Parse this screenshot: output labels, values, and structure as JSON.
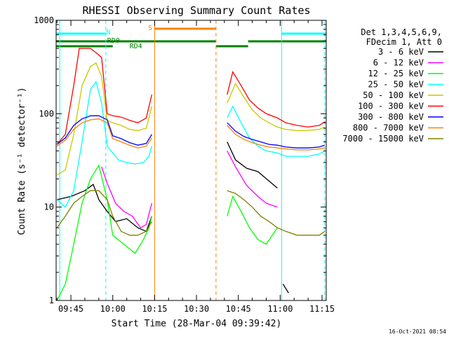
{
  "chart_data": {
    "type": "line",
    "title": "RHESSI Observing Summary Count Rates",
    "xlabel": "Start Time (28-Mar-04 09:39:42)",
    "ylabel": "Count Rate (s⁻¹ detector⁻¹)",
    "y_scale": "log",
    "ylim": [
      1,
      1000
    ],
    "xlim": [
      "09:39:42",
      "11:16:30"
    ],
    "y_ticks": [
      {
        "value": 1,
        "label": "1"
      },
      {
        "value": 10,
        "label": "10"
      },
      {
        "value": 100,
        "label": "100"
      },
      {
        "value": 1000,
        "label": "1000"
      }
    ],
    "x_ticks": [
      {
        "value": "09:45",
        "label": "09:45"
      },
      {
        "value": "10:00",
        "label": "10:00"
      },
      {
        "value": "10:15",
        "label": "10:15"
      },
      {
        "value": "10:30",
        "label": "10:30"
      },
      {
        "value": "10:45",
        "label": "10:45"
      },
      {
        "value": "11:00",
        "label": "11:00"
      },
      {
        "value": "11:15",
        "label": "11:15"
      }
    ],
    "legend": {
      "placement": "right",
      "header": [
        "Det 1,3,4,5,6,9,",
        "FDecim 1, Att 0"
      ]
    },
    "series": [
      {
        "name": "3 - 6 keV",
        "color": "#000000",
        "points": [
          [
            "09:40",
            12.0
          ],
          [
            "09:45",
            13.0
          ],
          [
            "09:50",
            15.0
          ],
          [
            "09:53",
            17.5
          ],
          [
            "09:55",
            12.0
          ],
          [
            "09:58",
            9.0
          ],
          [
            "10:01",
            7.0
          ],
          [
            "10:05",
            7.5
          ],
          [
            "10:09",
            6.0
          ],
          [
            "10:12",
            5.5
          ],
          [
            "10:14",
            8.0
          ],
          [
            "10:16",
            null
          ],
          [
            "10:41",
            50.0
          ],
          [
            "10:44",
            32.0
          ],
          [
            "10:48",
            26.0
          ],
          [
            "10:52",
            24.0
          ],
          [
            "10:56",
            19.0
          ],
          [
            "10:59",
            16.0
          ],
          [
            "11:00",
            null
          ],
          [
            "11:01",
            1.5
          ],
          [
            "11:03",
            1.2
          ]
        ]
      },
      {
        "name": "6 - 12 keV",
        "color": "#ff00ff",
        "points": [
          [
            "09:56",
            27.0
          ],
          [
            "09:58",
            18.0
          ],
          [
            "10:01",
            11.0
          ],
          [
            "10:04",
            9.0
          ],
          [
            "10:07",
            8.0
          ],
          [
            "10:10",
            6.0
          ],
          [
            "10:12",
            6.5
          ],
          [
            "10:14",
            11.0
          ],
          [
            "10:16",
            null
          ],
          [
            "10:41",
            40.0
          ],
          [
            "10:44",
            27.0
          ],
          [
            "10:48",
            17.0
          ],
          [
            "10:52",
            13.0
          ],
          [
            "10:55",
            11.0
          ],
          [
            "10:59",
            10.0
          ],
          [
            "11:00",
            null
          ]
        ]
      },
      {
        "name": "12 - 25 keV",
        "color": "#00ff00",
        "points": [
          [
            "09:40",
            1.0
          ],
          [
            "09:43",
            1.5
          ],
          [
            "09:46",
            4.0
          ],
          [
            "09:49",
            11.0
          ],
          [
            "09:52",
            20.0
          ],
          [
            "09:55",
            28.0
          ],
          [
            "09:58",
            12.0
          ],
          [
            "10:00",
            5.0
          ],
          [
            "10:04",
            4.0
          ],
          [
            "10:08",
            3.2
          ],
          [
            "10:11",
            4.5
          ],
          [
            "10:13",
            6.0
          ],
          [
            "10:14",
            8.0
          ],
          [
            "10:16",
            null
          ],
          [
            "10:41",
            8.0
          ],
          [
            "10:43",
            13.0
          ],
          [
            "10:46",
            9.0
          ],
          [
            "10:49",
            6.0
          ],
          [
            "10:52",
            4.5
          ],
          [
            "10:55",
            4.0
          ],
          [
            "10:59",
            6.0
          ],
          [
            "11:00",
            null
          ]
        ]
      },
      {
        "name": "25 - 50 keV",
        "color": "#00ffff",
        "points": [
          [
            "09:40",
            12.0
          ],
          [
            "09:43",
            10.0
          ],
          [
            "09:46",
            15.0
          ],
          [
            "09:49",
            50.0
          ],
          [
            "09:52",
            180.0
          ],
          [
            "09:54",
            220.0
          ],
          [
            "09:56",
            130.0
          ],
          [
            "09:58",
            45.0
          ],
          [
            "10:00",
            38.0
          ],
          [
            "10:02",
            32.0
          ],
          [
            "10:05",
            30.0
          ],
          [
            "10:08",
            29.0
          ],
          [
            "10:11",
            30.0
          ],
          [
            "10:13",
            35.0
          ],
          [
            "10:14",
            45.0
          ],
          [
            "10:16",
            null
          ],
          [
            "10:41",
            90.0
          ],
          [
            "10:43",
            120.0
          ],
          [
            "10:46",
            80.0
          ],
          [
            "10:49",
            55.0
          ],
          [
            "10:52",
            45.0
          ],
          [
            "10:55",
            40.0
          ],
          [
            "10:59",
            38.0
          ],
          [
            "11:02",
            35.0
          ],
          [
            "11:06",
            35.0
          ],
          [
            "11:10",
            35.0
          ],
          [
            "11:14",
            37.0
          ],
          [
            "11:16",
            40.0
          ]
        ]
      },
      {
        "name": "50 - 100 keV",
        "color": "#c8c800",
        "points": [
          [
            "09:40",
            22.0
          ],
          [
            "09:43",
            25.0
          ],
          [
            "09:46",
            60.0
          ],
          [
            "09:49",
            200.0
          ],
          [
            "09:52",
            320.0
          ],
          [
            "09:54",
            350.0
          ],
          [
            "09:56",
            250.0
          ],
          [
            "09:58",
            85.0
          ],
          [
            "10:00",
            80.0
          ],
          [
            "10:03",
            75.0
          ],
          [
            "10:06",
            68.0
          ],
          [
            "10:09",
            66.0
          ],
          [
            "10:12",
            70.0
          ],
          [
            "10:14",
            120.0
          ],
          [
            "10:16",
            null
          ],
          [
            "10:41",
            130.0
          ],
          [
            "10:44",
            210.0
          ],
          [
            "10:47",
            150.0
          ],
          [
            "10:50",
            110.0
          ],
          [
            "10:53",
            90.0
          ],
          [
            "10:56",
            80.0
          ],
          [
            "10:59",
            72.0
          ],
          [
            "11:02",
            68.0
          ],
          [
            "11:06",
            66.0
          ],
          [
            "11:10",
            66.0
          ],
          [
            "11:14",
            68.0
          ],
          [
            "11:16",
            72.0
          ]
        ]
      },
      {
        "name": "100 - 300 keV",
        "color": "#ff0000",
        "points": [
          [
            "09:40",
            47.0
          ],
          [
            "09:43",
            60.0
          ],
          [
            "09:46",
            200.0
          ],
          [
            "09:48",
            500.0
          ],
          [
            "09:52",
            500.0
          ],
          [
            "09:54",
            450.0
          ],
          [
            "09:56",
            400.0
          ],
          [
            "09:58",
            100.0
          ],
          [
            "10:00",
            95.0
          ],
          [
            "10:03",
            92.0
          ],
          [
            "10:06",
            85.0
          ],
          [
            "10:09",
            80.0
          ],
          [
            "10:12",
            90.0
          ],
          [
            "10:14",
            160.0
          ],
          [
            "10:16",
            null
          ],
          [
            "10:41",
            160.0
          ],
          [
            "10:43",
            280.0
          ],
          [
            "10:46",
            200.0
          ],
          [
            "10:49",
            140.0
          ],
          [
            "10:52",
            115.0
          ],
          [
            "10:55",
            100.0
          ],
          [
            "10:59",
            90.0
          ],
          [
            "11:02",
            80.0
          ],
          [
            "11:06",
            75.0
          ],
          [
            "11:10",
            72.0
          ],
          [
            "11:14",
            75.0
          ],
          [
            "11:16",
            82.0
          ]
        ]
      },
      {
        "name": "300 - 800 keV",
        "color": "#0000ff",
        "points": [
          [
            "09:40",
            47.0
          ],
          [
            "09:43",
            55.0
          ],
          [
            "09:46",
            75.0
          ],
          [
            "09:49",
            88.0
          ],
          [
            "09:52",
            95.0
          ],
          [
            "09:55",
            95.0
          ],
          [
            "09:58",
            86.0
          ],
          [
            "10:00",
            58.0
          ],
          [
            "10:03",
            54.0
          ],
          [
            "10:06",
            49.0
          ],
          [
            "10:09",
            46.0
          ],
          [
            "10:12",
            48.0
          ],
          [
            "10:14",
            60.0
          ],
          [
            "10:16",
            null
          ],
          [
            "10:41",
            80.0
          ],
          [
            "10:44",
            65.0
          ],
          [
            "10:47",
            57.0
          ],
          [
            "10:50",
            53.0
          ],
          [
            "10:53",
            50.0
          ],
          [
            "10:56",
            47.0
          ],
          [
            "10:59",
            46.0
          ],
          [
            "11:02",
            44.0
          ],
          [
            "11:06",
            43.0
          ],
          [
            "11:10",
            43.0
          ],
          [
            "11:14",
            44.0
          ],
          [
            "11:16",
            46.0
          ]
        ]
      },
      {
        "name": "800 - 7000 keV",
        "color": "#ff8000",
        "points": [
          [
            "09:40",
            45.0
          ],
          [
            "09:43",
            52.0
          ],
          [
            "09:46",
            68.0
          ],
          [
            "09:49",
            80.0
          ],
          [
            "09:52",
            86.0
          ],
          [
            "09:55",
            88.0
          ],
          [
            "09:58",
            80.0
          ],
          [
            "10:00",
            54.0
          ],
          [
            "10:03",
            50.0
          ],
          [
            "10:06",
            46.0
          ],
          [
            "10:09",
            43.0
          ],
          [
            "10:12",
            45.0
          ],
          [
            "10:14",
            55.0
          ],
          [
            "10:16",
            null
          ],
          [
            "10:41",
            75.0
          ],
          [
            "10:44",
            60.0
          ],
          [
            "10:47",
            53.0
          ],
          [
            "10:50",
            49.0
          ],
          [
            "10:53",
            46.0
          ],
          [
            "10:56",
            44.0
          ],
          [
            "10:59",
            43.0
          ],
          [
            "11:02",
            42.0
          ],
          [
            "11:06",
            41.0
          ],
          [
            "11:10",
            41.0
          ],
          [
            "11:14",
            42.0
          ],
          [
            "11:16",
            43.0
          ]
        ]
      },
      {
        "name": "7000 - 15000 keV",
        "color": "#808000",
        "points": [
          [
            "09:40",
            6.0
          ],
          [
            "09:43",
            8.0
          ],
          [
            "09:46",
            11.0
          ],
          [
            "09:49",
            13.0
          ],
          [
            "09:52",
            15.0
          ],
          [
            "09:55",
            15.0
          ],
          [
            "09:58",
            12.0
          ],
          [
            "10:00",
            8.0
          ],
          [
            "10:03",
            5.5
          ],
          [
            "10:06",
            5.0
          ],
          [
            "10:09",
            5.0
          ],
          [
            "10:12",
            5.5
          ],
          [
            "10:14",
            7.0
          ],
          [
            "10:16",
            null
          ],
          [
            "10:41",
            15.0
          ],
          [
            "10:44",
            14.0
          ],
          [
            "10:47",
            12.0
          ],
          [
            "10:50",
            10.0
          ],
          [
            "10:53",
            8.0
          ],
          [
            "10:56",
            7.0
          ],
          [
            "10:59",
            6.0
          ],
          [
            "11:02",
            5.5
          ],
          [
            "11:06",
            5.0
          ],
          [
            "11:10",
            5.0
          ],
          [
            "11:14",
            5.0
          ],
          [
            "11:16",
            5.5
          ]
        ]
      }
    ],
    "flag_bars": [
      {
        "label": "N",
        "color": "#00ffff",
        "ranges": [
          [
            "09:39:42",
            "09:57:30"
          ],
          [
            "11:00:30",
            "11:16:30"
          ]
        ]
      },
      {
        "label": "S",
        "color": "#ff8000",
        "ranges": [
          [
            "10:15:00",
            "10:37:00"
          ]
        ]
      },
      {
        "label": "RD0",
        "color": "#008000",
        "ranges": [
          [
            "09:39:42",
            "10:37:00"
          ],
          [
            "10:37:00",
            "10:48:30"
          ],
          [
            "10:48:30",
            "11:16:30"
          ]
        ]
      },
      {
        "label": "RD4",
        "color": "#008000",
        "ranges": [
          [
            "09:39:42",
            "09:52:00"
          ]
        ]
      }
    ],
    "vertical_markers": [
      {
        "time": "09:41:00",
        "color": "#00ffff",
        "style": "solid"
      },
      {
        "time": "09:57:30",
        "color": "#00ffff",
        "style": "dashed"
      },
      {
        "time": "10:15:00",
        "color": "#ff8000",
        "style": "solid"
      },
      {
        "time": "10:37:00",
        "color": "#ff8000",
        "style": "dashed"
      },
      {
        "time": "11:00:30",
        "color": "#00ffff",
        "style": "solid"
      },
      {
        "time": "11:16:00",
        "color": "#00ffff",
        "style": "dashed"
      }
    ],
    "footer_timestamp": "16-Oct-2021 08:54"
  }
}
